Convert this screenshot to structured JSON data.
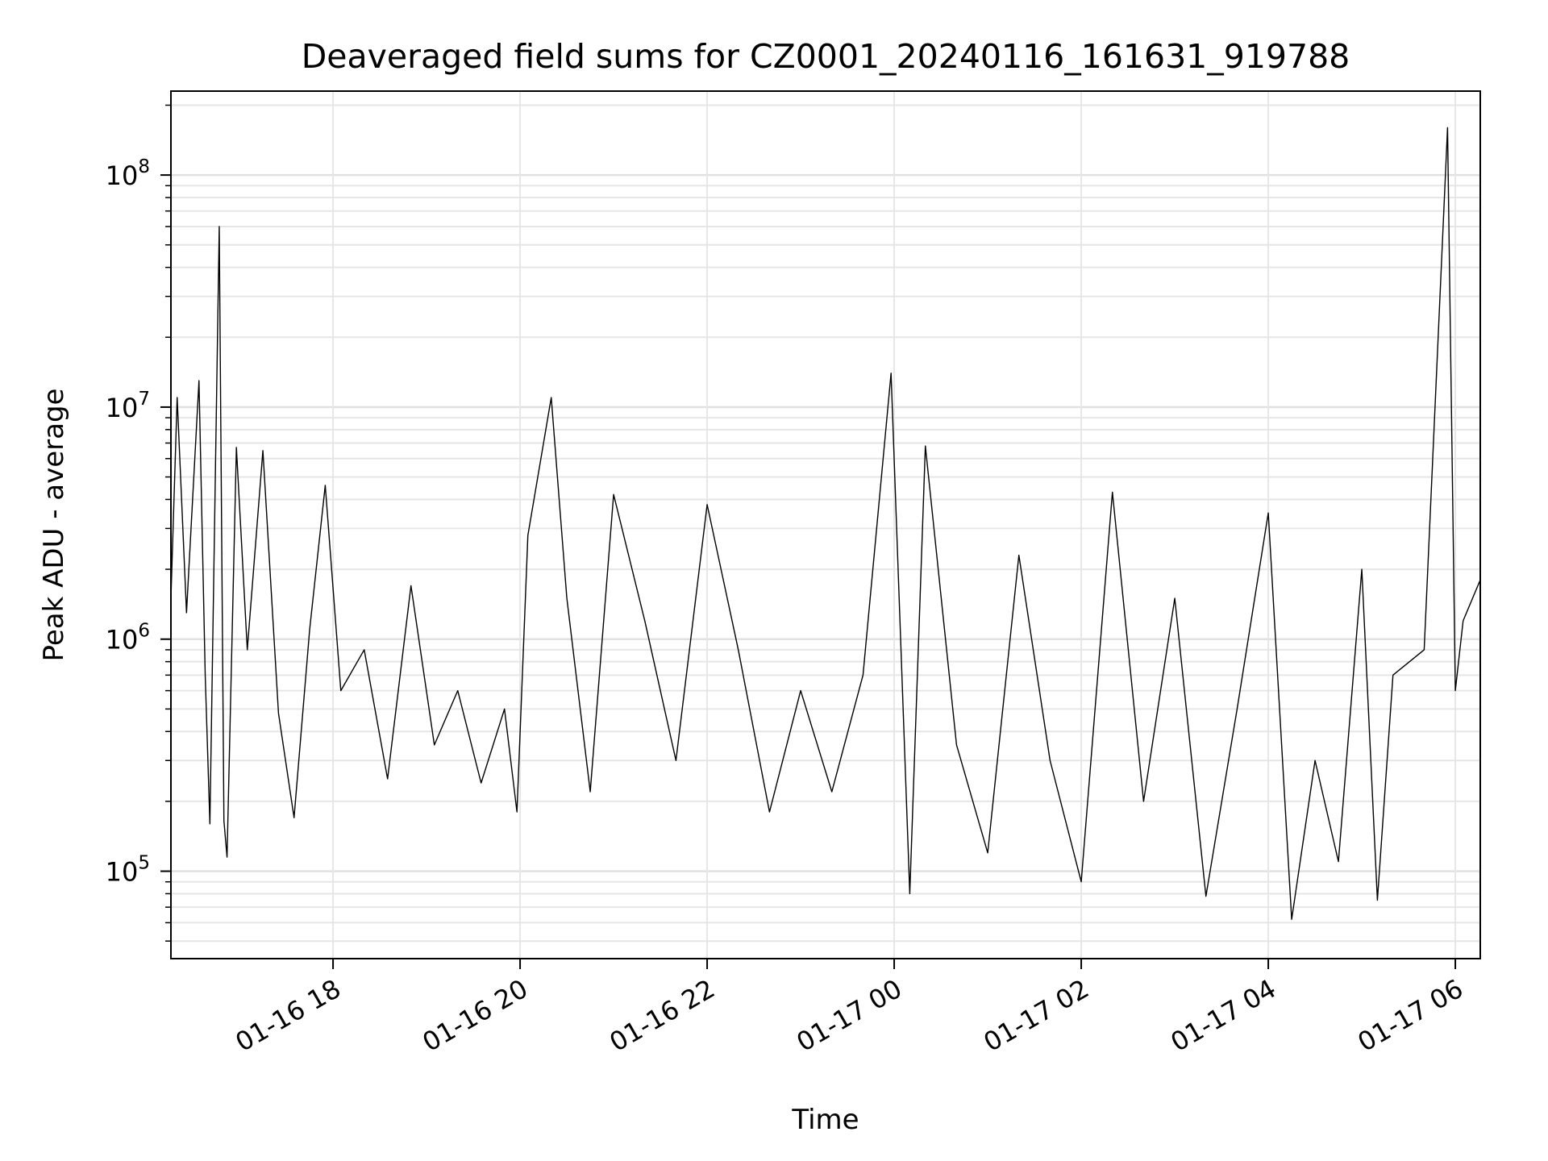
{
  "chart_data": {
    "type": "line",
    "title": "Deaveraged field sums for CZ0001_20240116_161631_919788",
    "xlabel": "Time",
    "ylabel": "Peak ADU - average",
    "y_scale": "log",
    "ylim": [
      42000,
      230000000
    ],
    "xlim": [
      "2024-01-16 16:16",
      "2024-01-17 06:16"
    ],
    "x_ticks": [
      {
        "value": "2024-01-16 18:00",
        "label": "01-16 18"
      },
      {
        "value": "2024-01-16 20:00",
        "label": "01-16 20"
      },
      {
        "value": "2024-01-16 22:00",
        "label": "01-16 22"
      },
      {
        "value": "2024-01-17 00:00",
        "label": "01-17 00"
      },
      {
        "value": "2024-01-17 02:00",
        "label": "01-17 02"
      },
      {
        "value": "2024-01-17 04:00",
        "label": "01-17 04"
      },
      {
        "value": "2024-01-17 06:00",
        "label": "01-17 06"
      }
    ],
    "y_ticks": [
      {
        "value": 100000,
        "base": "10",
        "exp": "5"
      },
      {
        "value": 1000000,
        "base": "10",
        "exp": "6"
      },
      {
        "value": 10000000,
        "base": "10",
        "exp": "7"
      },
      {
        "value": 100000000,
        "base": "10",
        "exp": "8"
      }
    ],
    "grid": true,
    "legend": "none",
    "line_color": "#000000",
    "series": [
      {
        "points": [
          [
            "2024-01-16 16:16",
            1500000
          ],
          [
            "2024-01-16 16:20",
            11000000
          ],
          [
            "2024-01-16 16:26",
            1300000
          ],
          [
            "2024-01-16 16:34",
            13000000
          ],
          [
            "2024-01-16 16:38",
            700000
          ],
          [
            "2024-01-16 16:41",
            160000
          ],
          [
            "2024-01-16 16:47",
            60000000
          ],
          [
            "2024-01-16 16:50",
            165000
          ],
          [
            "2024-01-16 16:52",
            115000
          ],
          [
            "2024-01-16 16:58",
            6700000
          ],
          [
            "2024-01-16 17:05",
            900000
          ],
          [
            "2024-01-16 17:15",
            6500000
          ],
          [
            "2024-01-16 17:25",
            480000
          ],
          [
            "2024-01-16 17:35",
            170000
          ],
          [
            "2024-01-16 17:45",
            1100000
          ],
          [
            "2024-01-16 17:55",
            4600000
          ],
          [
            "2024-01-16 18:05",
            600000
          ],
          [
            "2024-01-16 18:20",
            900000
          ],
          [
            "2024-01-16 18:35",
            250000
          ],
          [
            "2024-01-16 18:50",
            1700000
          ],
          [
            "2024-01-16 19:05",
            350000
          ],
          [
            "2024-01-16 19:20",
            600000
          ],
          [
            "2024-01-16 19:35",
            240000
          ],
          [
            "2024-01-16 19:50",
            500000
          ],
          [
            "2024-01-16 19:58",
            180000
          ],
          [
            "2024-01-16 20:05",
            2800000
          ],
          [
            "2024-01-16 20:20",
            11000000
          ],
          [
            "2024-01-16 20:30",
            1500000
          ],
          [
            "2024-01-16 20:45",
            220000
          ],
          [
            "2024-01-16 21:00",
            4200000
          ],
          [
            "2024-01-16 21:20",
            1200000
          ],
          [
            "2024-01-16 21:40",
            300000
          ],
          [
            "2024-01-16 22:00",
            3800000
          ],
          [
            "2024-01-16 22:20",
            900000
          ],
          [
            "2024-01-16 22:40",
            180000
          ],
          [
            "2024-01-16 23:00",
            600000
          ],
          [
            "2024-01-16 23:20",
            220000
          ],
          [
            "2024-01-16 23:40",
            700000
          ],
          [
            "2024-01-16 23:58",
            14000000
          ],
          [
            "2024-01-17 00:10",
            80000
          ],
          [
            "2024-01-17 00:20",
            6800000
          ],
          [
            "2024-01-17 00:40",
            350000
          ],
          [
            "2024-01-17 01:00",
            120000
          ],
          [
            "2024-01-17 01:20",
            2300000
          ],
          [
            "2024-01-17 01:40",
            300000
          ],
          [
            "2024-01-17 02:00",
            90000
          ],
          [
            "2024-01-17 02:20",
            4300000
          ],
          [
            "2024-01-17 02:40",
            200000
          ],
          [
            "2024-01-17 03:00",
            1500000
          ],
          [
            "2024-01-17 03:20",
            78000
          ],
          [
            "2024-01-17 03:40",
            500000
          ],
          [
            "2024-01-17 04:00",
            3500000
          ],
          [
            "2024-01-17 04:15",
            62000
          ],
          [
            "2024-01-17 04:30",
            300000
          ],
          [
            "2024-01-17 04:45",
            110000
          ],
          [
            "2024-01-17 05:00",
            2000000
          ],
          [
            "2024-01-17 05:10",
            75000
          ],
          [
            "2024-01-17 05:20",
            700000
          ],
          [
            "2024-01-17 05:40",
            900000
          ],
          [
            "2024-01-17 05:55",
            160000000
          ],
          [
            "2024-01-17 06:00",
            600000
          ],
          [
            "2024-01-17 06:05",
            1200000
          ],
          [
            "2024-01-17 06:16",
            1800000
          ]
        ]
      }
    ]
  }
}
